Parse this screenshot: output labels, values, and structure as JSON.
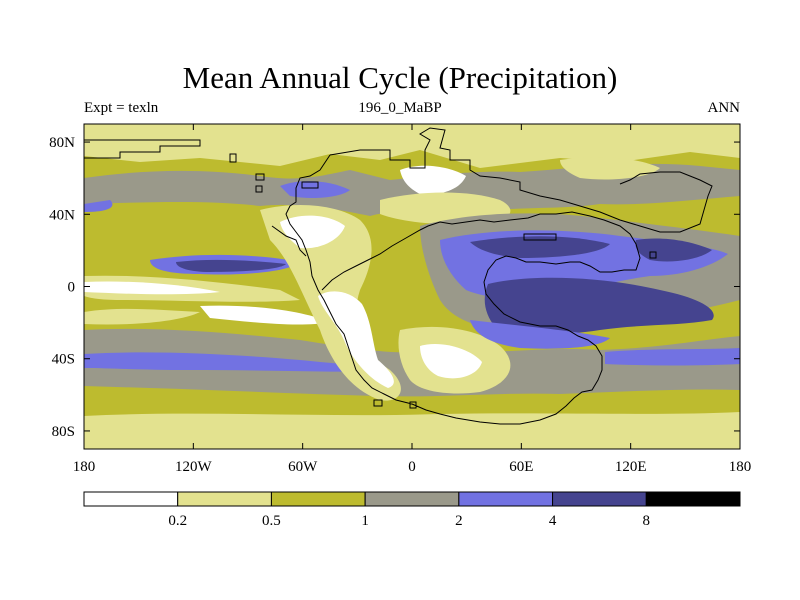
{
  "title": "Mean Annual Cycle (Precipitation)",
  "subtitle_left": "Expt = texln",
  "subtitle_center": "196_0_MaBP",
  "subtitle_right": "ANN",
  "map": {
    "lon_range": [
      -180,
      180
    ],
    "lat_range": [
      -90,
      90
    ],
    "lat_ticks": [
      {
        "value": 80,
        "label": "80N"
      },
      {
        "value": 40,
        "label": "40N"
      },
      {
        "value": 0,
        "label": "0"
      },
      {
        "value": -40,
        "label": "40S"
      },
      {
        "value": -80,
        "label": "80S"
      }
    ],
    "lon_ticks": [
      {
        "value": -180,
        "label": "180"
      },
      {
        "value": -120,
        "label": "120W"
      },
      {
        "value": -60,
        "label": "60W"
      },
      {
        "value": 0,
        "label": "0"
      },
      {
        "value": 60,
        "label": "60E"
      },
      {
        "value": 120,
        "label": "120E"
      },
      {
        "value": 180,
        "label": "180"
      }
    ]
  },
  "colorbar": {
    "colors": [
      "#ffffff",
      "#e3e28f",
      "#bdbb2f",
      "#9a998a",
      "#7272e2",
      "#45448f",
      "#000000"
    ],
    "labels": [
      "0.2",
      "0.5",
      "1",
      "2",
      "4",
      "8"
    ]
  },
  "palette": {
    "white": "#ffffff",
    "pale": "#e3e28f",
    "olive": "#bdbb2f",
    "gray": "#9a998a",
    "blue": "#7272e2",
    "navy": "#45448f",
    "black": "#000000"
  }
}
